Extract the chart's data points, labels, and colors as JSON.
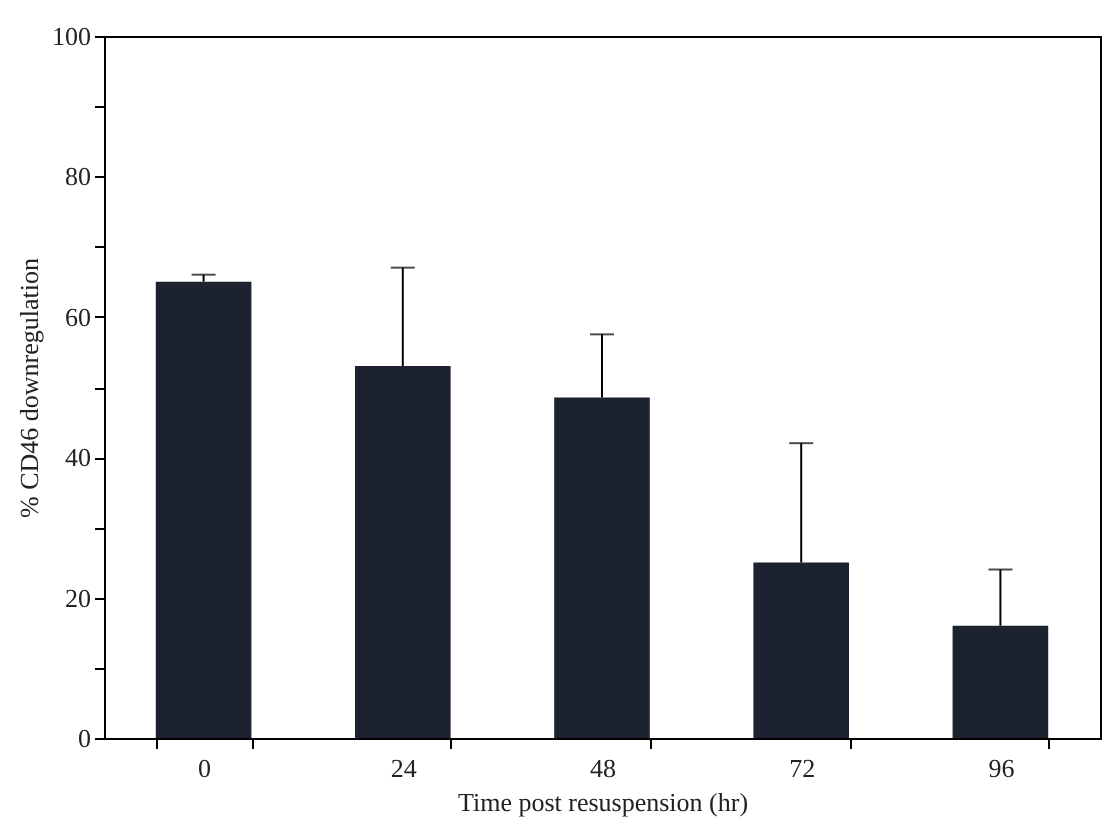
{
  "chart_data": {
    "type": "bar",
    "xlabel": "Time post resuspension (hr)",
    "ylabel": "% CD46 downregulation",
    "categories": [
      "0",
      "24",
      "48",
      "72",
      "96"
    ],
    "values": [
      65,
      53,
      48.5,
      25,
      16
    ],
    "errors": [
      [
        65,
        66
      ],
      [
        53,
        67
      ],
      [
        48.5,
        57.5
      ],
      [
        25,
        42
      ],
      [
        16,
        24
      ]
    ],
    "color": "#1c2230",
    "ylim": [
      0,
      100
    ],
    "yticks": [
      0,
      {
        "value": 10,
        "label": null
      },
      20,
      {
        "value": 30,
        "label": null
      },
      40,
      {
        "value": 50,
        "label": null
      },
      60,
      {
        "value": 70,
        "label": null
      },
      80,
      {
        "value": 90,
        "label": null
      },
      100
    ],
    "grid": false
  }
}
